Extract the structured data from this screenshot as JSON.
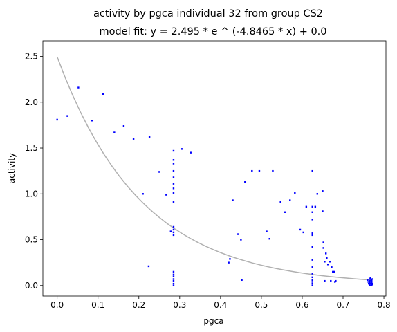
{
  "chart_data": {
    "type": "scatter",
    "title": "activity by pgca individual 32 from group CS2",
    "subtitle": "model fit: y = 2.495 * e ^ (-4.8465 * x) + 0.0",
    "xlabel": "pgca",
    "ylabel": "activity",
    "xlim": [
      -0.035,
      0.805
    ],
    "ylim": [
      -0.115,
      2.67
    ],
    "xticks": [
      0.0,
      0.1,
      0.2,
      0.3,
      0.4,
      0.5,
      0.6,
      0.7,
      0.8
    ],
    "xtick_labels": [
      "0.0",
      "0.1",
      "0.2",
      "0.3",
      "0.4",
      "0.5",
      "0.6",
      "0.7",
      "0.8"
    ],
    "yticks": [
      0.0,
      0.5,
      1.0,
      1.5,
      2.0,
      2.5
    ],
    "ytick_labels": [
      "0.0",
      "0.5",
      "1.0",
      "1.5",
      "2.0",
      "2.5"
    ],
    "grid": false,
    "colors": {
      "points": "#0000ff",
      "fit": "#b0b0b0"
    },
    "fit": {
      "a": 2.495,
      "b": -4.8465,
      "c": 0.0,
      "x_range": [
        0.0,
        0.765
      ]
    },
    "series": [
      {
        "points": [
          [
            0.0,
            1.81
          ],
          [
            0.025,
            1.85
          ],
          [
            0.052,
            2.16
          ],
          [
            0.085,
            1.8
          ],
          [
            0.112,
            2.09
          ],
          [
            0.14,
            1.67
          ],
          [
            0.163,
            1.74
          ],
          [
            0.187,
            1.6
          ],
          [
            0.226,
            1.62
          ],
          [
            0.21,
            1.0
          ],
          [
            0.224,
            0.21
          ],
          [
            0.25,
            1.24
          ],
          [
            0.267,
            0.99
          ],
          [
            0.285,
            1.47
          ],
          [
            0.285,
            1.37
          ],
          [
            0.285,
            1.33
          ],
          [
            0.285,
            1.25
          ],
          [
            0.285,
            1.18
          ],
          [
            0.285,
            1.11
          ],
          [
            0.285,
            1.06
          ],
          [
            0.285,
            1.01
          ],
          [
            0.285,
            0.91
          ],
          [
            0.285,
            0.64
          ],
          [
            0.285,
            0.61
          ],
          [
            0.285,
            0.58
          ],
          [
            0.278,
            0.59
          ],
          [
            0.285,
            0.55
          ],
          [
            0.285,
            0.15
          ],
          [
            0.285,
            0.12
          ],
          [
            0.285,
            0.1
          ],
          [
            0.285,
            0.07
          ],
          [
            0.285,
            0.05
          ],
          [
            0.285,
            0.02
          ],
          [
            0.285,
            0.0
          ],
          [
            0.305,
            1.49
          ],
          [
            0.327,
            1.45
          ],
          [
            0.42,
            0.25
          ],
          [
            0.423,
            0.29
          ],
          [
            0.43,
            0.93
          ],
          [
            0.443,
            0.56
          ],
          [
            0.45,
            0.5
          ],
          [
            0.452,
            0.06
          ],
          [
            0.46,
            1.13
          ],
          [
            0.477,
            1.25
          ],
          [
            0.495,
            1.25
          ],
          [
            0.513,
            0.59
          ],
          [
            0.52,
            0.51
          ],
          [
            0.528,
            1.25
          ],
          [
            0.547,
            0.91
          ],
          [
            0.558,
            0.8
          ],
          [
            0.57,
            0.93
          ],
          [
            0.582,
            1.01
          ],
          [
            0.595,
            0.61
          ],
          [
            0.603,
            0.58
          ],
          [
            0.61,
            0.86
          ],
          [
            0.625,
            1.25
          ],
          [
            0.625,
            0.86
          ],
          [
            0.625,
            0.8
          ],
          [
            0.625,
            0.72
          ],
          [
            0.625,
            0.57
          ],
          [
            0.625,
            0.55
          ],
          [
            0.625,
            0.42
          ],
          [
            0.625,
            0.28
          ],
          [
            0.625,
            0.2
          ],
          [
            0.625,
            0.13
          ],
          [
            0.625,
            0.09
          ],
          [
            0.625,
            0.06
          ],
          [
            0.625,
            0.04
          ],
          [
            0.625,
            0.02
          ],
          [
            0.625,
            0.0
          ],
          [
            0.632,
            0.86
          ],
          [
            0.637,
            1.0
          ],
          [
            0.65,
            1.03
          ],
          [
            0.65,
            0.81
          ],
          [
            0.652,
            0.47
          ],
          [
            0.652,
            0.41
          ],
          [
            0.655,
            0.26
          ],
          [
            0.655,
            0.05
          ],
          [
            0.658,
            0.35
          ],
          [
            0.66,
            0.3
          ],
          [
            0.663,
            0.23
          ],
          [
            0.668,
            0.26
          ],
          [
            0.67,
            0.05
          ],
          [
            0.672,
            0.2
          ],
          [
            0.675,
            0.15
          ],
          [
            0.678,
            0.15
          ],
          [
            0.68,
            0.04
          ],
          [
            0.682,
            0.05
          ],
          [
            0.76,
            0.06
          ],
          [
            0.762,
            0.04
          ],
          [
            0.763,
            0.02
          ],
          [
            0.765,
            0.07
          ],
          [
            0.765,
            0.05
          ],
          [
            0.765,
            0.03
          ],
          [
            0.765,
            0.01
          ],
          [
            0.765,
            0.0
          ],
          [
            0.767,
            0.08
          ],
          [
            0.767,
            0.04
          ],
          [
            0.768,
            0.02
          ],
          [
            0.769,
            0.06
          ],
          [
            0.769,
            0.0
          ],
          [
            0.77,
            0.03
          ],
          [
            0.77,
            0.05
          ],
          [
            0.771,
            0.01
          ],
          [
            0.772,
            0.07
          ],
          [
            0.772,
            0.02
          ]
        ]
      }
    ]
  }
}
